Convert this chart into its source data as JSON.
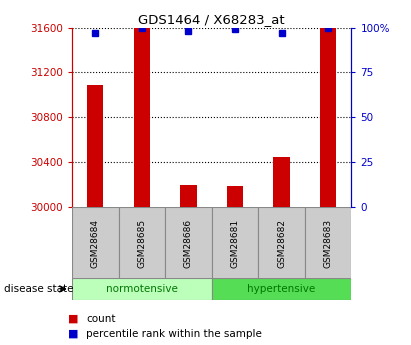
{
  "title": "GDS1464 / X68283_at",
  "samples": [
    "GSM28684",
    "GSM28685",
    "GSM28686",
    "GSM28681",
    "GSM28682",
    "GSM28683"
  ],
  "counts": [
    31090,
    31600,
    30200,
    30185,
    30450,
    31600
  ],
  "percentile_ranks": [
    97,
    100,
    98,
    99,
    97,
    100
  ],
  "y_min": 30000,
  "y_max": 31600,
  "y_ticks": [
    30000,
    30400,
    30800,
    31200,
    31600
  ],
  "y_right_ticks": [
    0,
    25,
    50,
    75,
    100
  ],
  "bar_color": "#cc0000",
  "dot_color": "#0000cc",
  "normotensive_color": "#bbffbb",
  "hypertensive_color": "#55dd55",
  "group_label_color": "#007700",
  "label_box_color": "#cccccc",
  "background_color": "#ffffff"
}
